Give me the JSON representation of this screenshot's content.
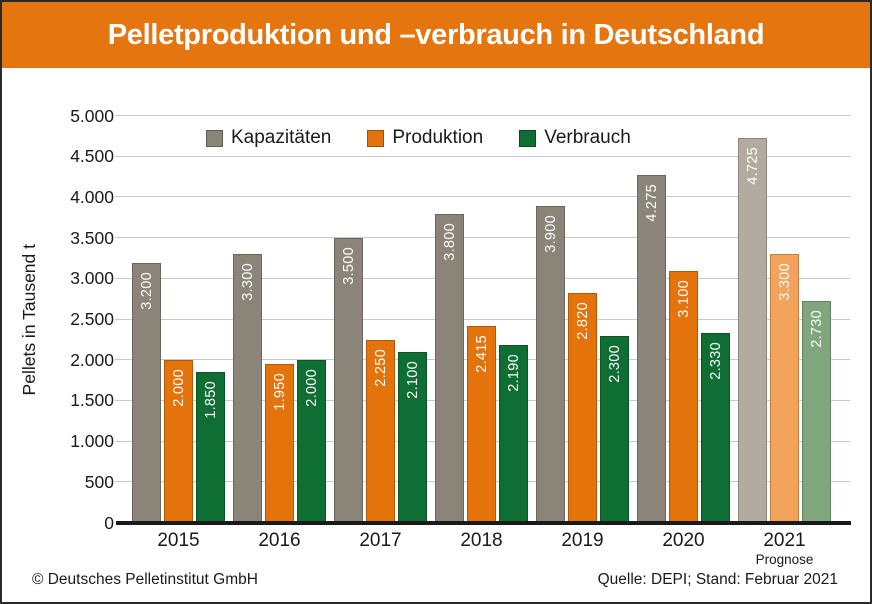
{
  "header": {
    "title": "Pelletproduktion und –verbrauch in Deutschland"
  },
  "footer": {
    "copyright": "© Deutsches Pelletinstitut GmbH",
    "source": "Quelle: DEPI; Stand: Februar 2021"
  },
  "colors": {
    "header_bg": "#e5750e",
    "page_border": "#2a2a2a",
    "axis": "#1a1a1a",
    "gridline": "#c9c9c9",
    "text": "#1a1a1a"
  },
  "chart_data": {
    "type": "bar",
    "title": "Pelletproduktion und –verbrauch in Deutschland",
    "ylabel": "Pellets in Tausend t",
    "xlabel": "",
    "ylim": [
      0,
      5000
    ],
    "grid": true,
    "legend_position": "top-left-inside",
    "yticks": [
      {
        "v": 0,
        "label": "0"
      },
      {
        "v": 500,
        "label": "500"
      },
      {
        "v": 1000,
        "label": "1.000"
      },
      {
        "v": 1500,
        "label": "1.500"
      },
      {
        "v": 2000,
        "label": "2.000"
      },
      {
        "v": 2500,
        "label": "2.500"
      },
      {
        "v": 3000,
        "label": "3.000"
      },
      {
        "v": 3500,
        "label": "3.500"
      },
      {
        "v": 4000,
        "label": "4.000"
      },
      {
        "v": 4500,
        "label": "4.500"
      },
      {
        "v": 5000,
        "label": "5.000"
      }
    ],
    "categories": [
      "2015",
      "2016",
      "2017",
      "2018",
      "2019",
      "2020",
      "2021"
    ],
    "forecast_index": 6,
    "forecast_note": "Prognose",
    "series": [
      {
        "name": "Kapazitäten",
        "color": "#8b8478",
        "forecast_color": "#b2ab9f",
        "values": [
          3200,
          3300,
          3500,
          3800,
          3900,
          4275,
          4725
        ],
        "labels": [
          "3.200",
          "3.300",
          "3.500",
          "3.800",
          "3.900",
          "4.275",
          "4.725"
        ]
      },
      {
        "name": "Produktion",
        "color": "#e5730c",
        "forecast_color": "#f3a35c",
        "values": [
          2000,
          1950,
          2250,
          2415,
          2820,
          3100,
          3300
        ],
        "labels": [
          "2.000",
          "1.950",
          "2.250",
          "2.415",
          "2.820",
          "3.100",
          "3.300"
        ]
      },
      {
        "name": "Verbrauch",
        "color": "#0e6e33",
        "forecast_color": "#7fa67c",
        "values": [
          1850,
          2000,
          2100,
          2190,
          2300,
          2330,
          2730
        ],
        "labels": [
          "1.850",
          "2.000",
          "2.100",
          "2.190",
          "2.300",
          "2.330",
          "2.730"
        ]
      }
    ]
  }
}
